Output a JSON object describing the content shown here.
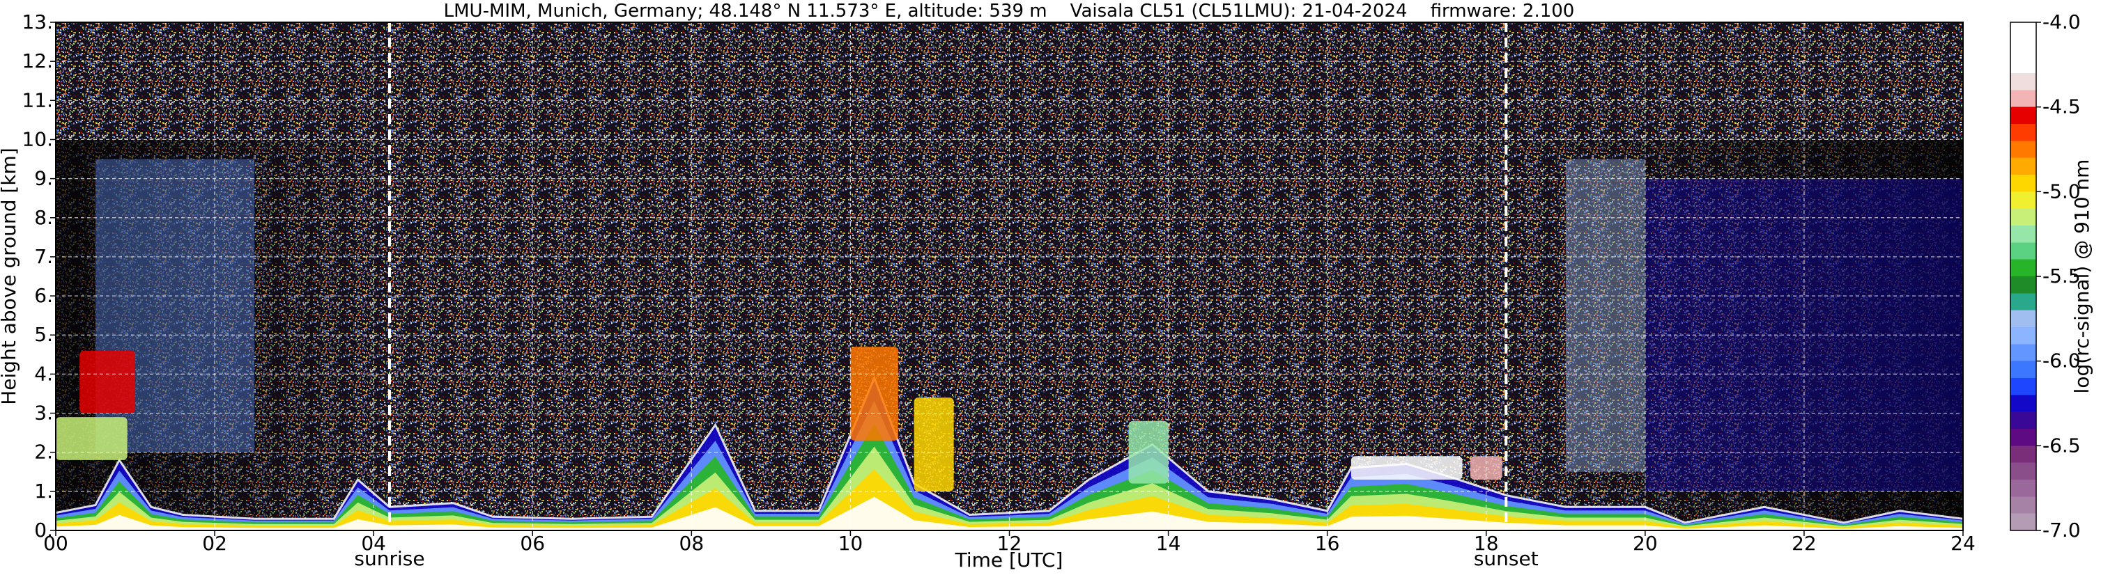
{
  "chart_data": {
    "type": "heatmap",
    "title": "LMU-MIM, Munich, Germany; 48.148° N 11.573° E, altitude: 539 m    Vaisala CL51 (CL51LMU): 21-04-2024    firmware: 2.100",
    "xlabel": "Time [UTC]",
    "ylabel": "Height above ground [km]",
    "xlim": [
      0,
      24
    ],
    "ylim": [
      0,
      13
    ],
    "x_ticks": [
      0,
      2,
      4,
      6,
      8,
      10,
      12,
      14,
      16,
      18,
      20,
      22,
      24
    ],
    "x_tick_labels": [
      "00",
      "02",
      "04",
      "06",
      "08",
      "10",
      "12",
      "14",
      "16",
      "18",
      "20",
      "22",
      "24"
    ],
    "y_ticks": [
      0,
      1,
      2,
      3,
      4,
      5,
      6,
      7,
      8,
      9,
      10,
      11,
      12,
      13
    ],
    "y_tick_labels": [
      "0.",
      "1.",
      "2.",
      "3.",
      "4.",
      "5.",
      "6.",
      "7.",
      "8.",
      "9.",
      "10.",
      "11.",
      "12.",
      "13."
    ],
    "grid": true,
    "markers": [
      {
        "label": "sunrise",
        "time": 4.2
      },
      {
        "label": "sunset",
        "time": 18.25
      }
    ],
    "colorbar": {
      "label": "log(rc-signal) @ 910 nm",
      "range": [
        -7.0,
        -4.0
      ],
      "ticks": [
        -7.0,
        -6.5,
        -6.0,
        -5.5,
        -5.0,
        -4.5,
        -4.0
      ],
      "tick_labels": [
        "-7.0",
        "-6.5",
        "-6.0",
        "-5.5",
        "-5.0",
        "-4.5",
        "-4.0"
      ],
      "colors": [
        "#b49cb4",
        "#a782a7",
        "#9a689a",
        "#8a4e8a",
        "#7a2e7a",
        "#5e0a82",
        "#3a0896",
        "#1408c8",
        "#1e46ff",
        "#3c78ff",
        "#6496ff",
        "#8cb4ff",
        "#a0beef",
        "#2aa88c",
        "#1e8a28",
        "#28b428",
        "#5ad282",
        "#96e6aa",
        "#c8f078",
        "#f0f030",
        "#ffd700",
        "#ffaa00",
        "#ff7800",
        "#ff3c00",
        "#e60000",
        "#f2b4b4",
        "#f0dede",
        "#ffffff",
        "#ffffff",
        "#ffffff"
      ]
    },
    "boundary_layer": [
      {
        "t": 0.0,
        "h": 0.45
      },
      {
        "t": 0.5,
        "h": 0.65
      },
      {
        "t": 0.8,
        "h": 1.8
      },
      {
        "t": 1.2,
        "h": 0.6
      },
      {
        "t": 1.6,
        "h": 0.4
      },
      {
        "t": 2.5,
        "h": 0.3
      },
      {
        "t": 3.5,
        "h": 0.3
      },
      {
        "t": 3.8,
        "h": 1.3
      },
      {
        "t": 4.2,
        "h": 0.6
      },
      {
        "t": 5.0,
        "h": 0.7
      },
      {
        "t": 5.5,
        "h": 0.35
      },
      {
        "t": 6.5,
        "h": 0.3
      },
      {
        "t": 7.5,
        "h": 0.35
      },
      {
        "t": 8.3,
        "h": 2.7
      },
      {
        "t": 8.8,
        "h": 0.5
      },
      {
        "t": 9.6,
        "h": 0.5
      },
      {
        "t": 10.3,
        "h": 3.9
      },
      {
        "t": 10.8,
        "h": 1.2
      },
      {
        "t": 11.5,
        "h": 0.4
      },
      {
        "t": 12.5,
        "h": 0.5
      },
      {
        "t": 13.0,
        "h": 1.3
      },
      {
        "t": 13.8,
        "h": 2.2
      },
      {
        "t": 14.5,
        "h": 1.0
      },
      {
        "t": 15.3,
        "h": 0.8
      },
      {
        "t": 16.0,
        "h": 0.5
      },
      {
        "t": 16.3,
        "h": 1.6
      },
      {
        "t": 17.0,
        "h": 1.7
      },
      {
        "t": 17.5,
        "h": 1.4
      },
      {
        "t": 18.25,
        "h": 0.9
      },
      {
        "t": 19.0,
        "h": 0.6
      },
      {
        "t": 20.0,
        "h": 0.6
      },
      {
        "t": 20.5,
        "h": 0.2
      },
      {
        "t": 21.5,
        "h": 0.6
      },
      {
        "t": 22.5,
        "h": 0.2
      },
      {
        "t": 23.2,
        "h": 0.5
      },
      {
        "t": 24.0,
        "h": 0.3
      }
    ],
    "elevated_layers": [
      {
        "t0": 0.3,
        "t1": 1.0,
        "h0": 3.0,
        "h1": 4.6,
        "value": -4.6
      },
      {
        "t0": 0.0,
        "t1": 0.9,
        "h0": 1.8,
        "h1": 2.9,
        "value": -5.2
      },
      {
        "t0": 10.0,
        "t1": 10.6,
        "h0": 2.3,
        "h1": 4.7,
        "value": -4.8
      },
      {
        "t0": 10.8,
        "t1": 11.3,
        "h0": 1.0,
        "h1": 3.4,
        "value": -5.0
      },
      {
        "t0": 13.5,
        "t1": 14.0,
        "h0": 1.2,
        "h1": 2.8,
        "value": -5.3
      },
      {
        "t0": 16.3,
        "t1": 17.7,
        "h0": 1.3,
        "h1": 1.9,
        "value": -4.3
      },
      {
        "t0": 17.8,
        "t1": 18.2,
        "h0": 1.3,
        "h1": 1.9,
        "value": -4.4
      }
    ],
    "aerosol_plumes": [
      {
        "t0": 0.5,
        "t1": 2.5,
        "h0": 2.0,
        "h1": 9.5,
        "value": -5.9
      },
      {
        "t0": 19.0,
        "t1": 20.0,
        "h0": 1.5,
        "h1": 9.5,
        "value": -5.7
      },
      {
        "t0": 20.0,
        "t1": 24.0,
        "h0": 1.0,
        "h1": 9.0,
        "value": -6.3
      }
    ]
  }
}
